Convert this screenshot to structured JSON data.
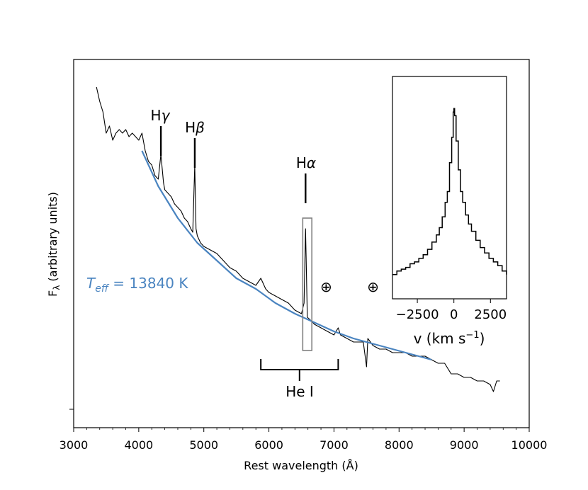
{
  "chart_data": [
    {
      "type": "line",
      "xlabel": "Rest wavelength (Å)",
      "ylabel": "F",
      "ylabel_sub": "λ",
      "ylabel_rest": " (arbitrary units)",
      "xlim": [
        3000,
        10000
      ],
      "ylim": [
        0,
        1
      ],
      "xticks": [
        3000,
        4000,
        5000,
        6000,
        7000,
        8000,
        9000,
        10000
      ],
      "xtick_labels": [
        "3000",
        "4000",
        "5000",
        "6000",
        "7000",
        "8000",
        "9000",
        "10000"
      ],
      "yticks_labels_visible": false,
      "series": [
        {
          "role": "observed spectrum",
          "color": "#000000",
          "x": [
            3350,
            3400,
            3450,
            3500,
            3550,
            3600,
            3650,
            3700,
            3750,
            3800,
            3850,
            3900,
            3950,
            4000,
            4050,
            4100,
            4150,
            4200,
            4250,
            4300,
            4340,
            4380,
            4400,
            4450,
            4500,
            4550,
            4600,
            4650,
            4700,
            4750,
            4800,
            4830,
            4861,
            4880,
            4900,
            4950,
            5000,
            5100,
            5200,
            5300,
            5400,
            5500,
            5600,
            5700,
            5800,
            5876,
            5950,
            6000,
            6100,
            6200,
            6300,
            6400,
            6500,
            6540,
            6563,
            6590,
            6650,
            6700,
            6800,
            6900,
            7000,
            7065,
            7100,
            7200,
            7300,
            7400,
            7450,
            7500,
            7520,
            7600,
            7700,
            7800,
            7900,
            8000,
            8100,
            8200,
            8300,
            8400,
            8500,
            8600,
            8700,
            8800,
            8900,
            9000,
            9100,
            9200,
            9300,
            9400,
            9450,
            9500,
            9550
          ],
          "y": [
            0.91,
            0.87,
            0.84,
            0.78,
            0.8,
            0.76,
            0.78,
            0.79,
            0.78,
            0.79,
            0.77,
            0.78,
            0.77,
            0.76,
            0.78,
            0.73,
            0.7,
            0.69,
            0.66,
            0.65,
            0.72,
            0.64,
            0.62,
            0.61,
            0.6,
            0.58,
            0.57,
            0.56,
            0.54,
            0.53,
            0.51,
            0.5,
            0.69,
            0.51,
            0.49,
            0.47,
            0.46,
            0.45,
            0.44,
            0.42,
            0.4,
            0.39,
            0.37,
            0.36,
            0.35,
            0.37,
            0.34,
            0.33,
            0.32,
            0.31,
            0.3,
            0.28,
            0.27,
            0.3,
            0.51,
            0.26,
            0.25,
            0.24,
            0.23,
            0.22,
            0.21,
            0.23,
            0.21,
            0.2,
            0.19,
            0.19,
            0.19,
            0.12,
            0.2,
            0.18,
            0.17,
            0.17,
            0.16,
            0.16,
            0.16,
            0.15,
            0.15,
            0.15,
            0.14,
            0.13,
            0.13,
            0.1,
            0.1,
            0.09,
            0.09,
            0.08,
            0.08,
            0.07,
            0.05,
            0.08,
            0.08
          ]
        },
        {
          "role": "blackbody fit",
          "color": "#4a84c0",
          "x": [
            4050,
            4300,
            4600,
            4900,
            5200,
            5500,
            5800,
            6100,
            6400,
            6700,
            7000,
            7300,
            7600,
            7900,
            8200,
            8500
          ],
          "y": [
            0.73,
            0.63,
            0.54,
            0.47,
            0.42,
            0.37,
            0.34,
            0.3,
            0.27,
            0.245,
            0.22,
            0.2,
            0.185,
            0.17,
            0.155,
            0.14
          ]
        }
      ],
      "annotations": {
        "lines": [
          {
            "label_main": "H",
            "label_greek": "γ",
            "x": 4340
          },
          {
            "label_main": "H",
            "label_greek": "β",
            "x": 4861
          },
          {
            "label_main": "H",
            "label_greek": "α",
            "x": 6563
          }
        ],
        "he_label": "He I",
        "he_range": [
          5876,
          7065
        ],
        "teff_prefix": "T",
        "teff_sub": "eff",
        "teff_value": " =  13840 K",
        "teff_color": "#4a84c0",
        "telluric_symbol": "⊕",
        "telluric_x": [
          6880,
          7600
        ],
        "halpha_box": [
          6520,
          6660
        ],
        "box_color": "#808080"
      }
    },
    {
      "type": "line",
      "role": "inset H-alpha velocity profile",
      "xlabel_prefix": "v (km s",
      "xlabel_sup": "−1",
      "xlabel_suffix": ")",
      "xlim": [
        -4200,
        3600
      ],
      "ylim": [
        0,
        1
      ],
      "xticks": [
        -2500,
        0,
        2500
      ],
      "xtick_labels": [
        "−2500",
        "0",
        "2500"
      ],
      "x": [
        -4200,
        -3900,
        -3600,
        -3300,
        -3000,
        -2700,
        -2400,
        -2100,
        -1800,
        -1500,
        -1200,
        -1000,
        -800,
        -600,
        -450,
        -300,
        -150,
        -50,
        0,
        50,
        150,
        300,
        450,
        600,
        800,
        1000,
        1200,
        1500,
        1800,
        2100,
        2400,
        2700,
        3000,
        3300,
        3600
      ],
      "y": [
        0.04,
        0.06,
        0.07,
        0.08,
        0.1,
        0.11,
        0.13,
        0.15,
        0.18,
        0.22,
        0.26,
        0.3,
        0.36,
        0.44,
        0.5,
        0.66,
        0.8,
        0.94,
        0.96,
        0.92,
        0.78,
        0.62,
        0.5,
        0.44,
        0.37,
        0.32,
        0.28,
        0.23,
        0.19,
        0.16,
        0.13,
        0.11,
        0.09,
        0.06,
        0.04
      ]
    }
  ]
}
